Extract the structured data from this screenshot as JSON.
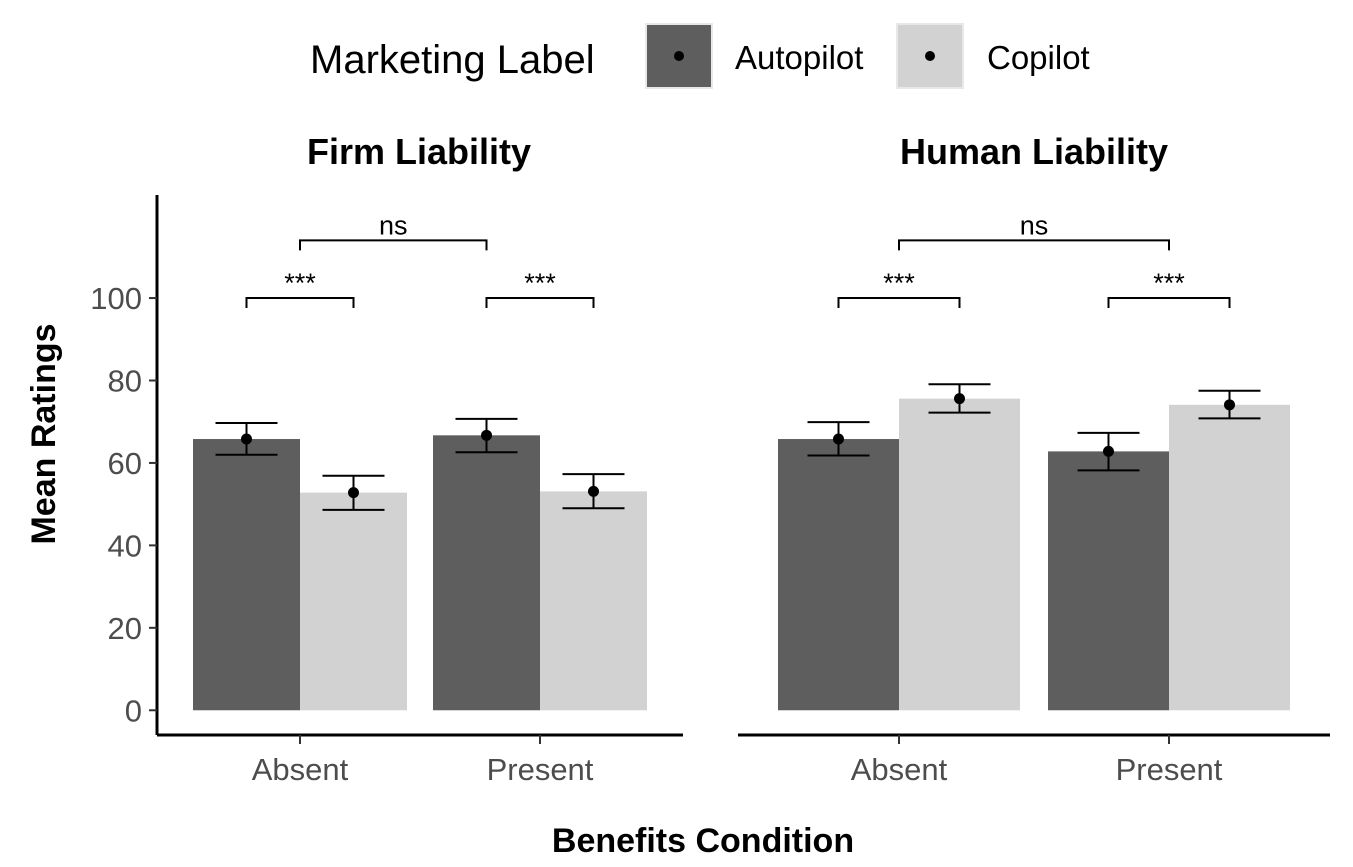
{
  "chart_data": {
    "type": "bar",
    "legend": {
      "title": "Marketing Label",
      "placement": "top",
      "entries": [
        {
          "name": "Autopilot",
          "color": "#5e5e5e"
        },
        {
          "name": "Copilot",
          "color": "#d2d2d2"
        }
      ]
    },
    "xlabel": "Benefits Condition",
    "ylabel": "Mean Ratings",
    "ylim": [
      -6,
      125
    ],
    "yticks": [
      0,
      20,
      40,
      60,
      80,
      100
    ],
    "categories": [
      "Absent",
      "Present"
    ],
    "grid": false,
    "facets": [
      {
        "title": "Firm Liability",
        "series": [
          {
            "name": "Autopilot",
            "values": [
              65.8,
              66.7
            ],
            "error_low": [
              62.0,
              62.6
            ],
            "error_high": [
              69.7,
              70.7
            ]
          },
          {
            "name": "Copilot",
            "values": [
              52.8,
              53.1
            ],
            "error_low": [
              48.6,
              49.0
            ],
            "error_high": [
              56.9,
              57.3
            ]
          }
        ],
        "annotations": [
          {
            "label": "***",
            "from": {
              "category": 0,
              "series": 0
            },
            "to": {
              "category": 0,
              "series": 1
            },
            "y": 100
          },
          {
            "label": "***",
            "from": {
              "category": 1,
              "series": 0
            },
            "to": {
              "category": 1,
              "series": 1
            },
            "y": 100
          },
          {
            "label": "ns",
            "from": {
              "category": 0,
              "series": "center"
            },
            "to": {
              "category": 1,
              "series": 0
            },
            "y": 114
          }
        ]
      },
      {
        "title": "Human Liability",
        "series": [
          {
            "name": "Autopilot",
            "values": [
              65.8,
              62.8
            ],
            "error_low": [
              61.8,
              58.2
            ],
            "error_high": [
              69.9,
              67.3
            ]
          },
          {
            "name": "Copilot",
            "values": [
              75.6,
              74.1
            ],
            "error_low": [
              72.2,
              70.8
            ],
            "error_high": [
              79.1,
              77.5
            ]
          }
        ],
        "annotations": [
          {
            "label": "***",
            "from": {
              "category": 0,
              "series": 0
            },
            "to": {
              "category": 0,
              "series": 1
            },
            "y": 100
          },
          {
            "label": "***",
            "from": {
              "category": 1,
              "series": 0
            },
            "to": {
              "category": 1,
              "series": 1
            },
            "y": 100
          },
          {
            "label": "ns",
            "from": {
              "category": 0,
              "series": "center"
            },
            "to": {
              "category": 1,
              "series": "center"
            },
            "y": 114
          }
        ]
      }
    ]
  }
}
